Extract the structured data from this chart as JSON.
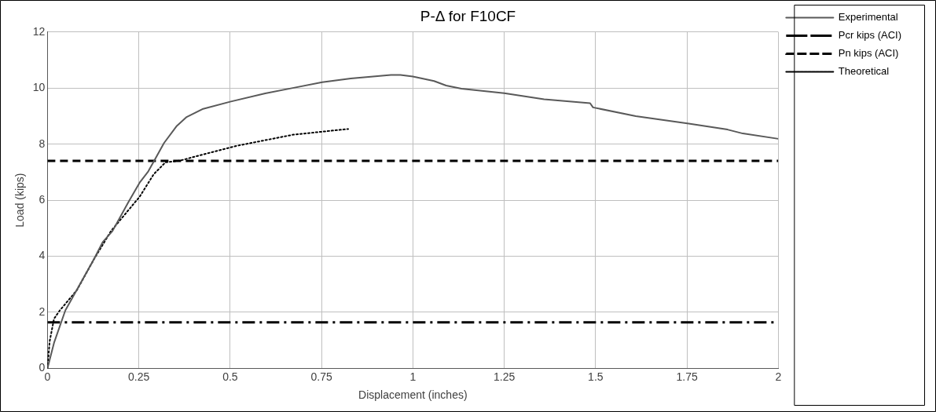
{
  "chart_data": {
    "type": "line",
    "title": "P-Δ for F10CF",
    "xlabel": "Displacement (inches)",
    "ylabel": "Load (kips)",
    "xlim": [
      0,
      2
    ],
    "xticks": [
      0,
      0.25,
      0.5,
      0.75,
      1,
      1.25,
      1.5,
      1.75,
      2
    ],
    "ylim": [
      0,
      12
    ],
    "yticks": [
      0,
      2,
      4,
      6,
      8,
      10,
      12
    ],
    "grid": true,
    "legend": "right",
    "marker": "none",
    "series": [
      {
        "name": "Experimental",
        "color": "#595959",
        "line_style": "solid",
        "x": [
          0,
          0.018,
          0.049,
          0.088,
          0.127,
          0.151,
          0.178,
          0.221,
          0.252,
          0.276,
          0.291,
          0.319,
          0.354,
          0.381,
          0.424,
          0.502,
          0.596,
          0.674,
          0.752,
          0.83,
          0.94,
          0.966,
          1.0,
          1.058,
          1.091,
          1.133,
          1.25,
          1.359,
          1.485,
          1.493,
          1.61,
          1.755,
          1.861,
          1.903,
          2.0
        ],
        "values": [
          0,
          0.91,
          2.07,
          2.98,
          3.89,
          4.5,
          4.9,
          5.92,
          6.62,
          7.03,
          7.38,
          8.04,
          8.65,
          8.97,
          9.25,
          9.52,
          9.81,
          10.01,
          10.21,
          10.34,
          10.47,
          10.47,
          10.41,
          10.25,
          10.09,
          9.98,
          9.82,
          9.6,
          9.46,
          9.31,
          9.0,
          8.73,
          8.52,
          8.38,
          8.19
        ]
      },
      {
        "name": "Pcr kips (ACI)",
        "color": "#000000",
        "line_style": "dashdot",
        "x": [
          0,
          2
        ],
        "values": [
          1.64,
          1.64
        ]
      },
      {
        "name": "Pn kips (ACI)",
        "color": "#000000",
        "line_style": "dashed",
        "x": [
          0,
          2
        ],
        "values": [
          7.4,
          7.4
        ]
      },
      {
        "name": "Theoretical",
        "color": "#000000",
        "line_style": "dotted",
        "x": [
          0,
          0.006,
          0.018,
          0.034,
          0.08,
          0.127,
          0.174,
          0.252,
          0.291,
          0.323,
          0.362,
          0.44,
          0.518,
          0.596,
          0.674,
          0.823
        ],
        "values": [
          0,
          0.96,
          1.77,
          2.07,
          2.78,
          3.89,
          4.9,
          6.12,
          6.93,
          7.35,
          7.41,
          7.68,
          7.94,
          8.14,
          8.34,
          8.54
        ]
      }
    ]
  }
}
